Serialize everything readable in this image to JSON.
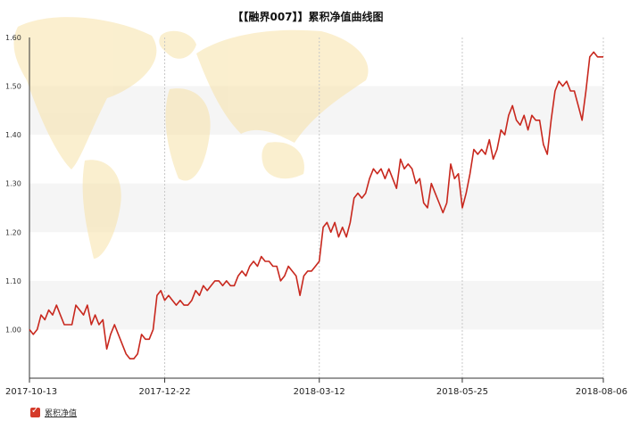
{
  "chart_data": {
    "type": "line",
    "title": "【【融界007】】累积净值曲线图",
    "xlabel": "",
    "ylabel": "",
    "x_range": [
      "2017-10-13",
      "2018-08-06"
    ],
    "ylim": [
      0.9,
      1.6
    ],
    "y_ticks": [
      "1.00",
      "1.10",
      "1.20",
      "1.30",
      "1.40",
      "1.50",
      "1.60"
    ],
    "x_ticks": [
      "2017-10-13",
      "2017-12-22",
      "2018-03-12",
      "2018-05-25",
      "2018-08-06"
    ],
    "grid": "horizontal bands",
    "legend_position": "bottom-left",
    "series": [
      {
        "name": "累积净值",
        "color": "#c8281e",
        "points": [
          [
            "2017-10-13",
            1.0
          ],
          [
            "2017-10-15",
            0.99
          ],
          [
            "2017-10-17",
            1.0
          ],
          [
            "2017-10-19",
            1.03
          ],
          [
            "2017-10-21",
            1.02
          ],
          [
            "2017-10-23",
            1.04
          ],
          [
            "2017-10-25",
            1.03
          ],
          [
            "2017-10-27",
            1.05
          ],
          [
            "2017-10-29",
            1.03
          ],
          [
            "2017-10-31",
            1.01
          ],
          [
            "2017-11-02",
            1.01
          ],
          [
            "2017-11-04",
            1.01
          ],
          [
            "2017-11-06",
            1.05
          ],
          [
            "2017-11-08",
            1.04
          ],
          [
            "2017-11-10",
            1.03
          ],
          [
            "2017-11-12",
            1.05
          ],
          [
            "2017-11-14",
            1.01
          ],
          [
            "2017-11-16",
            1.03
          ],
          [
            "2017-11-18",
            1.01
          ],
          [
            "2017-11-20",
            1.02
          ],
          [
            "2017-11-22",
            0.96
          ],
          [
            "2017-11-24",
            0.99
          ],
          [
            "2017-11-26",
            1.01
          ],
          [
            "2017-11-28",
            0.99
          ],
          [
            "2017-11-30",
            0.97
          ],
          [
            "2017-12-02",
            0.95
          ],
          [
            "2017-12-04",
            0.94
          ],
          [
            "2017-12-06",
            0.94
          ],
          [
            "2017-12-08",
            0.95
          ],
          [
            "2017-12-10",
            0.99
          ],
          [
            "2017-12-12",
            0.98
          ],
          [
            "2017-12-14",
            0.98
          ],
          [
            "2017-12-16",
            1.0
          ],
          [
            "2017-12-18",
            1.07
          ],
          [
            "2017-12-20",
            1.08
          ],
          [
            "2017-12-22",
            1.06
          ],
          [
            "2017-12-24",
            1.07
          ],
          [
            "2017-12-26",
            1.06
          ],
          [
            "2017-12-28",
            1.05
          ],
          [
            "2017-12-30",
            1.06
          ],
          [
            "2018-01-01",
            1.05
          ],
          [
            "2018-01-03",
            1.05
          ],
          [
            "2018-01-05",
            1.06
          ],
          [
            "2018-01-07",
            1.08
          ],
          [
            "2018-01-09",
            1.07
          ],
          [
            "2018-01-11",
            1.09
          ],
          [
            "2018-01-13",
            1.08
          ],
          [
            "2018-01-15",
            1.09
          ],
          [
            "2018-01-17",
            1.1
          ],
          [
            "2018-01-19",
            1.1
          ],
          [
            "2018-01-21",
            1.09
          ],
          [
            "2018-01-23",
            1.1
          ],
          [
            "2018-01-25",
            1.09
          ],
          [
            "2018-01-27",
            1.09
          ],
          [
            "2018-01-29",
            1.11
          ],
          [
            "2018-01-31",
            1.12
          ],
          [
            "2018-02-02",
            1.11
          ],
          [
            "2018-02-04",
            1.13
          ],
          [
            "2018-02-06",
            1.14
          ],
          [
            "2018-02-08",
            1.13
          ],
          [
            "2018-02-10",
            1.15
          ],
          [
            "2018-02-12",
            1.14
          ],
          [
            "2018-02-14",
            1.14
          ],
          [
            "2018-02-16",
            1.13
          ],
          [
            "2018-02-18",
            1.13
          ],
          [
            "2018-02-20",
            1.1
          ],
          [
            "2018-02-22",
            1.11
          ],
          [
            "2018-02-24",
            1.13
          ],
          [
            "2018-02-26",
            1.12
          ],
          [
            "2018-02-28",
            1.11
          ],
          [
            "2018-03-02",
            1.07
          ],
          [
            "2018-03-04",
            1.11
          ],
          [
            "2018-03-06",
            1.12
          ],
          [
            "2018-03-08",
            1.12
          ],
          [
            "2018-03-10",
            1.13
          ],
          [
            "2018-03-12",
            1.14
          ],
          [
            "2018-03-14",
            1.21
          ],
          [
            "2018-03-16",
            1.22
          ],
          [
            "2018-03-18",
            1.2
          ],
          [
            "2018-03-20",
            1.22
          ],
          [
            "2018-03-22",
            1.19
          ],
          [
            "2018-03-24",
            1.21
          ],
          [
            "2018-03-26",
            1.19
          ],
          [
            "2018-03-28",
            1.22
          ],
          [
            "2018-03-30",
            1.27
          ],
          [
            "2018-04-01",
            1.28
          ],
          [
            "2018-04-03",
            1.27
          ],
          [
            "2018-04-05",
            1.28
          ],
          [
            "2018-04-07",
            1.31
          ],
          [
            "2018-04-09",
            1.33
          ],
          [
            "2018-04-11",
            1.32
          ],
          [
            "2018-04-13",
            1.33
          ],
          [
            "2018-04-15",
            1.31
          ],
          [
            "2018-04-17",
            1.33
          ],
          [
            "2018-04-19",
            1.31
          ],
          [
            "2018-04-21",
            1.29
          ],
          [
            "2018-04-23",
            1.35
          ],
          [
            "2018-04-25",
            1.33
          ],
          [
            "2018-04-27",
            1.34
          ],
          [
            "2018-04-29",
            1.33
          ],
          [
            "2018-05-01",
            1.3
          ],
          [
            "2018-05-03",
            1.31
          ],
          [
            "2018-05-05",
            1.26
          ],
          [
            "2018-05-07",
            1.25
          ],
          [
            "2018-05-09",
            1.3
          ],
          [
            "2018-05-11",
            1.28
          ],
          [
            "2018-05-13",
            1.26
          ],
          [
            "2018-05-15",
            1.24
          ],
          [
            "2018-05-17",
            1.26
          ],
          [
            "2018-05-19",
            1.34
          ],
          [
            "2018-05-21",
            1.31
          ],
          [
            "2018-05-23",
            1.32
          ],
          [
            "2018-05-25",
            1.25
          ],
          [
            "2018-05-27",
            1.28
          ],
          [
            "2018-05-29",
            1.32
          ],
          [
            "2018-05-31",
            1.37
          ],
          [
            "2018-06-02",
            1.36
          ],
          [
            "2018-06-04",
            1.37
          ],
          [
            "2018-06-06",
            1.36
          ],
          [
            "2018-06-08",
            1.39
          ],
          [
            "2018-06-10",
            1.35
          ],
          [
            "2018-06-12",
            1.37
          ],
          [
            "2018-06-14",
            1.41
          ],
          [
            "2018-06-16",
            1.4
          ],
          [
            "2018-06-18",
            1.44
          ],
          [
            "2018-06-20",
            1.46
          ],
          [
            "2018-06-22",
            1.43
          ],
          [
            "2018-06-24",
            1.42
          ],
          [
            "2018-06-26",
            1.44
          ],
          [
            "2018-06-28",
            1.41
          ],
          [
            "2018-06-30",
            1.44
          ],
          [
            "2018-07-02",
            1.43
          ],
          [
            "2018-07-04",
            1.43
          ],
          [
            "2018-07-06",
            1.38
          ],
          [
            "2018-07-08",
            1.36
          ],
          [
            "2018-07-10",
            1.43
          ],
          [
            "2018-07-12",
            1.49
          ],
          [
            "2018-07-14",
            1.51
          ],
          [
            "2018-07-16",
            1.5
          ],
          [
            "2018-07-18",
            1.51
          ],
          [
            "2018-07-20",
            1.49
          ],
          [
            "2018-07-22",
            1.49
          ],
          [
            "2018-07-24",
            1.46
          ],
          [
            "2018-07-26",
            1.43
          ],
          [
            "2018-07-28",
            1.49
          ],
          [
            "2018-07-30",
            1.56
          ],
          [
            "2018-08-01",
            1.57
          ],
          [
            "2018-08-03",
            1.56
          ],
          [
            "2018-08-06",
            1.56
          ]
        ]
      }
    ]
  },
  "legend": {
    "label": "累积净值"
  }
}
